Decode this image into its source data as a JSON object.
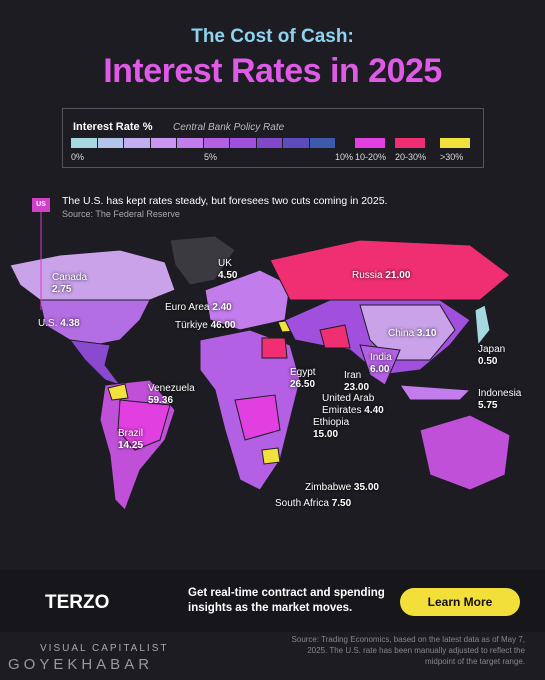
{
  "header": {
    "supertitle": "The Cost of Cash:",
    "title": "Interest Rates in 2025"
  },
  "legend": {
    "title": "Interest Rate %",
    "subtitle": "Central Bank Policy Rate",
    "scale_colors": [
      "#a6d9df",
      "#b4c4ea",
      "#c2adf0",
      "#c896f0",
      "#c27ceb",
      "#b460e4",
      "#a050dc",
      "#8248cc",
      "#5e4cbc",
      "#3c5aaa"
    ],
    "scale_labels": [
      "0%",
      "5%",
      "10%"
    ],
    "bins": [
      {
        "label": "10-20%",
        "color": "#e13fe0"
      },
      {
        "label": "20-30%",
        "color": "#ef2f72"
      },
      {
        "label": ">30%",
        "color": "#f2e13c"
      }
    ]
  },
  "callout": {
    "tag": "US",
    "text": "The U.S. has kept rates steady, but foresees two cuts coming in 2025.",
    "source": "Source: The Federal Reserve"
  },
  "countries": [
    {
      "name": "Canada",
      "rate": "2.75"
    },
    {
      "name": "U.S.",
      "rate": "4.38"
    },
    {
      "name": "UK",
      "rate": "4.50"
    },
    {
      "name": "Euro Area",
      "rate": "2.40"
    },
    {
      "name": "Türkiye",
      "rate": "46.00"
    },
    {
      "name": "Russia",
      "rate": "21.00"
    },
    {
      "name": "China",
      "rate": "3.10"
    },
    {
      "name": "Japan",
      "rate": "0.50"
    },
    {
      "name": "India",
      "rate": "6.00"
    },
    {
      "name": "Iran",
      "rate": "23.00"
    },
    {
      "name": "Egypt",
      "rate": "26.50"
    },
    {
      "name": "United Arab Emirates",
      "rate": "4.40"
    },
    {
      "name": "Ethiopia",
      "rate": "15.00"
    },
    {
      "name": "Indonesia",
      "rate": "5.75"
    },
    {
      "name": "Venezuela",
      "rate": "59.36"
    },
    {
      "name": "Brazil",
      "rate": "14.25"
    },
    {
      "name": "Zimbabwe",
      "rate": "35.00"
    },
    {
      "name": "South Africa",
      "rate": "7.50"
    }
  ],
  "ad": {
    "brand": "TERZO",
    "text": "Get real-time contract and spending insights as the market moves.",
    "button": "Learn More"
  },
  "footer": {
    "source": "Source: Trading Economics, based on the latest data as of May 7, 2025. The U.S. rate has been manually adjusted to reflect the midpoint of the target range.",
    "publisher": "VISUAL CAPITALIST",
    "watermark": "GOYEKHABAR"
  }
}
